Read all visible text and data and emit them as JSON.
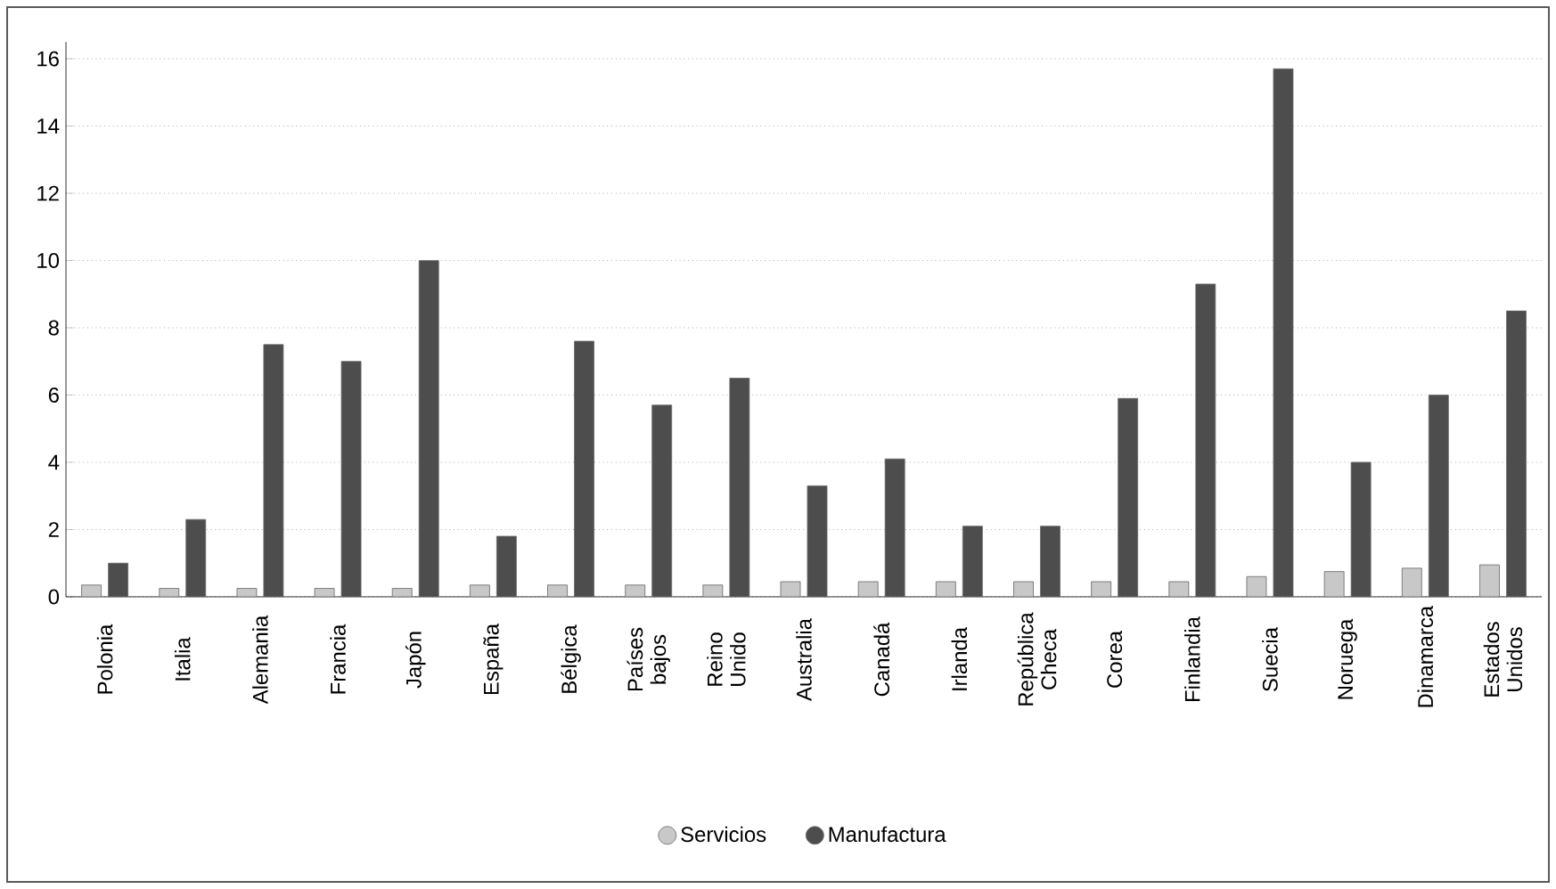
{
  "chart_data": {
    "type": "bar",
    "categories": [
      "Polonia",
      "Italia",
      "Alemania",
      "Francia",
      "Japón",
      "España",
      "Bélgica",
      "Países bajos",
      "Reino Unido",
      "Australia",
      "Canadá",
      "Irlanda",
      "República Checa",
      "Corea",
      "Finlandia",
      "Suecia",
      "Noruega",
      "Dinamarca",
      "Estados Unidos"
    ],
    "series": [
      {
        "name": "Servicios",
        "color": "#c8c8c8",
        "values": [
          0.35,
          0.25,
          0.25,
          0.25,
          0.25,
          0.35,
          0.35,
          0.35,
          0.35,
          0.45,
          0.45,
          0.45,
          0.45,
          0.45,
          0.45,
          0.6,
          0.75,
          0.85,
          0.95
        ]
      },
      {
        "name": "Manufactura",
        "color": "#4d4d4d",
        "values": [
          1.0,
          2.3,
          7.5,
          7.0,
          10.0,
          1.8,
          7.6,
          5.7,
          6.5,
          3.3,
          4.1,
          2.1,
          2.1,
          5.9,
          9.3,
          15.7,
          4.0,
          6.0,
          8.5
        ]
      }
    ],
    "ylim": [
      0,
      16.5
    ],
    "yticks": [
      0,
      2,
      4,
      6,
      8,
      10,
      12,
      14,
      16
    ],
    "grid": "y",
    "legend": "bottom"
  }
}
